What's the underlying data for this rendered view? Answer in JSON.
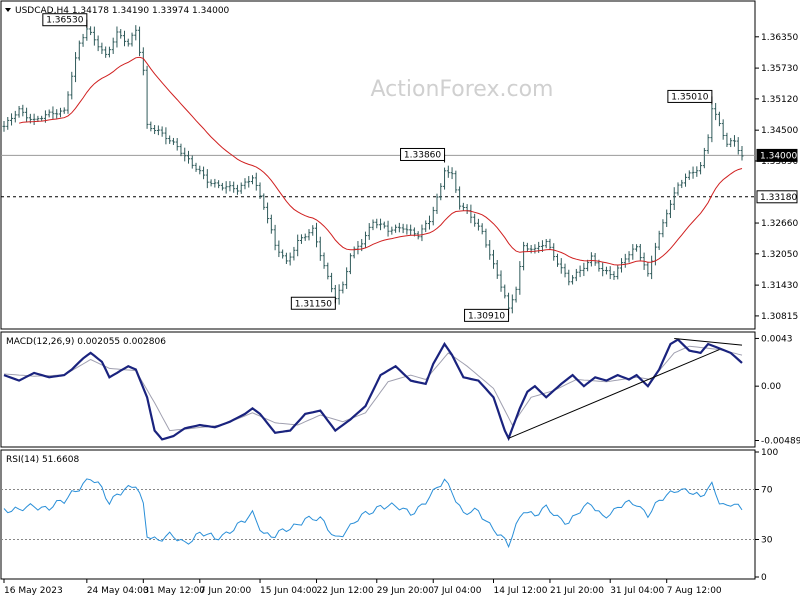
{
  "watermark": "ActionForex.com",
  "chart_data": [
    {
      "type": "bar",
      "name": "price",
      "title": "USDCAD,H4  1.34178 1.34190 1.33974 1.34000",
      "ylim": [
        1.3062,
        1.37
      ],
      "yticks": [
        {
          "v": 1.3635,
          "label": "1.36350"
        },
        {
          "v": 1.3573,
          "label": "1.35730"
        },
        {
          "v": 1.3512,
          "label": "1.35120"
        },
        {
          "v": 1.345,
          "label": "1.34500"
        },
        {
          "v": 1.3389,
          "label": "1.33890"
        },
        {
          "v": 1.3266,
          "label": "1.32660"
        },
        {
          "v": 1.3205,
          "label": "1.32050"
        },
        {
          "v": 1.3143,
          "label": "1.31430"
        },
        {
          "v": 1.3082,
          "label": "1.30815"
        }
      ],
      "current_price": {
        "v": 1.34,
        "label": "1.34000"
      },
      "support_line": {
        "v": 1.3318,
        "label": "1.33180"
      },
      "annotations": [
        {
          "label": "1.36530",
          "i": 22,
          "v": 1.3653
        },
        {
          "label": "1.33860",
          "i": 117,
          "v": 1.3386
        },
        {
          "label": "1.31150",
          "i": 88,
          "v": 1.3115
        },
        {
          "label": "1.30910",
          "i": 134,
          "v": 1.3091
        },
        {
          "label": "1.35010",
          "i": 188,
          "v": 1.3501
        }
      ],
      "anchors": [
        [
          0,
          1.3455
        ],
        [
          4,
          1.349
        ],
        [
          8,
          1.347
        ],
        [
          12,
          1.348
        ],
        [
          16,
          1.349
        ],
        [
          18,
          1.356
        ],
        [
          20,
          1.362
        ],
        [
          22,
          1.3648
        ],
        [
          24,
          1.363
        ],
        [
          27,
          1.36
        ],
        [
          30,
          1.364
        ],
        [
          33,
          1.362
        ],
        [
          35,
          1.365
        ],
        [
          37,
          1.357
        ],
        [
          38,
          1.346
        ],
        [
          42,
          1.344
        ],
        [
          46,
          1.342
        ],
        [
          50,
          1.338
        ],
        [
          54,
          1.335
        ],
        [
          58,
          1.334
        ],
        [
          62,
          1.333
        ],
        [
          66,
          1.336
        ],
        [
          69,
          1.33
        ],
        [
          72,
          1.322
        ],
        [
          75,
          1.319
        ],
        [
          78,
          1.323
        ],
        [
          82,
          1.325
        ],
        [
          86,
          1.316
        ],
        [
          88,
          1.312
        ],
        [
          90,
          1.314
        ],
        [
          92,
          1.32
        ],
        [
          95,
          1.323
        ],
        [
          98,
          1.327
        ],
        [
          102,
          1.325
        ],
        [
          106,
          1.326
        ],
        [
          110,
          1.324
        ],
        [
          113,
          1.327
        ],
        [
          116,
          1.334
        ],
        [
          117,
          1.3375
        ],
        [
          119,
          1.336
        ],
        [
          121,
          1.33
        ],
        [
          124,
          1.328
        ],
        [
          127,
          1.325
        ],
        [
          130,
          1.318
        ],
        [
          133,
          1.312
        ],
        [
          134,
          1.3095
        ],
        [
          136,
          1.314
        ],
        [
          138,
          1.322
        ],
        [
          141,
          1.321
        ],
        [
          144,
          1.323
        ],
        [
          147,
          1.319
        ],
        [
          150,
          1.315
        ],
        [
          153,
          1.317
        ],
        [
          156,
          1.32
        ],
        [
          159,
          1.317
        ],
        [
          162,
          1.316
        ],
        [
          165,
          1.32
        ],
        [
          168,
          1.322
        ],
        [
          171,
          1.316
        ],
        [
          173,
          1.322
        ],
        [
          176,
          1.329
        ],
        [
          179,
          1.334
        ],
        [
          182,
          1.336
        ],
        [
          185,
          1.338
        ],
        [
          187,
          1.344
        ],
        [
          188,
          1.3495
        ],
        [
          190,
          1.346
        ],
        [
          192,
          1.342
        ],
        [
          194,
          1.343
        ],
        [
          196,
          1.34
        ]
      ]
    },
    {
      "type": "line",
      "name": "macd",
      "title": "MACD(12,26,9) 0.002055 0.002806",
      "ylim": [
        -0.0053,
        0.0047
      ],
      "yticks": [
        {
          "v": 0.0043,
          "label": "0.0043"
        },
        {
          "v": 0.0,
          "label": "0.00"
        },
        {
          "v": -0.004895,
          "label": "-0.004895"
        }
      ],
      "main_anchors": [
        [
          0,
          0.001
        ],
        [
          4,
          0.0005
        ],
        [
          8,
          0.0012
        ],
        [
          12,
          0.0008
        ],
        [
          16,
          0.001
        ],
        [
          18,
          0.0015
        ],
        [
          21,
          0.0025
        ],
        [
          23,
          0.003
        ],
        [
          26,
          0.0022
        ],
        [
          28,
          0.0008
        ],
        [
          30,
          0.0012
        ],
        [
          33,
          0.0018
        ],
        [
          35,
          0.0015
        ],
        [
          38,
          -0.001
        ],
        [
          40,
          -0.004
        ],
        [
          42,
          -0.0048
        ],
        [
          45,
          -0.0045
        ],
        [
          48,
          -0.0038
        ],
        [
          52,
          -0.0035
        ],
        [
          56,
          -0.0037
        ],
        [
          60,
          -0.0032
        ],
        [
          64,
          -0.0025
        ],
        [
          66,
          -0.002
        ],
        [
          68,
          -0.0025
        ],
        [
          72,
          -0.0042
        ],
        [
          76,
          -0.004
        ],
        [
          80,
          -0.0025
        ],
        [
          84,
          -0.0022
        ],
        [
          88,
          -0.004
        ],
        [
          92,
          -0.003
        ],
        [
          96,
          -0.0018
        ],
        [
          100,
          0.001
        ],
        [
          104,
          0.0018
        ],
        [
          108,
          0.0005
        ],
        [
          112,
          0.0002
        ],
        [
          114,
          0.002
        ],
        [
          117,
          0.0038
        ],
        [
          119,
          0.0028
        ],
        [
          122,
          0.0008
        ],
        [
          126,
          0.0005
        ],
        [
          130,
          -0.001
        ],
        [
          133,
          -0.004
        ],
        [
          134,
          -0.0047
        ],
        [
          137,
          -0.002
        ],
        [
          139,
          -0.0005
        ],
        [
          141,
          0.0
        ],
        [
          144,
          -0.001
        ],
        [
          148,
          0.0002
        ],
        [
          151,
          0.001
        ],
        [
          154,
          0.0
        ],
        [
          157,
          0.0008
        ],
        [
          160,
          0.0005
        ],
        [
          163,
          0.001
        ],
        [
          166,
          0.0006
        ],
        [
          168,
          0.001
        ],
        [
          171,
          0.0
        ],
        [
          174,
          0.0015
        ],
        [
          177,
          0.0038
        ],
        [
          179,
          0.0042
        ],
        [
          182,
          0.0032
        ],
        [
          185,
          0.003
        ],
        [
          187,
          0.0038
        ],
        [
          190,
          0.0034
        ],
        [
          193,
          0.003
        ],
        [
          196,
          0.0021
        ]
      ],
      "signal_anchors": [
        [
          0,
          0.0011
        ],
        [
          8,
          0.0009
        ],
        [
          16,
          0.001
        ],
        [
          23,
          0.0024
        ],
        [
          28,
          0.0016
        ],
        [
          35,
          0.0014
        ],
        [
          40,
          -0.0015
        ],
        [
          44,
          -0.004
        ],
        [
          50,
          -0.0038
        ],
        [
          58,
          -0.0035
        ],
        [
          66,
          -0.0024
        ],
        [
          72,
          -0.0033
        ],
        [
          78,
          -0.0035
        ],
        [
          84,
          -0.0026
        ],
        [
          90,
          -0.0032
        ],
        [
          96,
          -0.0024
        ],
        [
          102,
          0.0004
        ],
        [
          108,
          0.001
        ],
        [
          112,
          0.0006
        ],
        [
          118,
          0.003
        ],
        [
          123,
          0.0018
        ],
        [
          130,
          -0.0002
        ],
        [
          135,
          -0.0035
        ],
        [
          140,
          -0.001
        ],
        [
          146,
          -0.0004
        ],
        [
          152,
          0.0006
        ],
        [
          160,
          0.0004
        ],
        [
          168,
          0.0008
        ],
        [
          172,
          0.0006
        ],
        [
          178,
          0.003
        ],
        [
          182,
          0.0036
        ],
        [
          190,
          0.0033
        ],
        [
          196,
          0.0028
        ]
      ],
      "trendlines": [
        {
          "from": [
            134,
            -0.0047
          ],
          "to": [
            190,
            0.0033
          ]
        },
        {
          "from": [
            178,
            0.0043
          ],
          "to": [
            196,
            0.0037
          ]
        }
      ]
    },
    {
      "type": "line",
      "name": "rsi",
      "title": "RSI(14) 51.6608",
      "ylim": [
        0,
        100
      ],
      "yticks": [
        {
          "v": 100,
          "label": "100"
        },
        {
          "v": 70,
          "label": "70"
        },
        {
          "v": 30,
          "label": "30"
        },
        {
          "v": 0,
          "label": "0"
        }
      ],
      "levels": [
        70,
        30
      ],
      "anchors": [
        [
          0,
          55
        ],
        [
          4,
          52
        ],
        [
          8,
          58
        ],
        [
          12,
          55
        ],
        [
          16,
          60
        ],
        [
          18,
          68
        ],
        [
          21,
          75
        ],
        [
          23,
          78
        ],
        [
          26,
          70
        ],
        [
          28,
          60
        ],
        [
          30,
          68
        ],
        [
          33,
          70
        ],
        [
          35,
          72
        ],
        [
          37,
          58
        ],
        [
          38,
          35
        ],
        [
          41,
          30
        ],
        [
          44,
          32
        ],
        [
          48,
          28
        ],
        [
          52,
          35
        ],
        [
          56,
          30
        ],
        [
          60,
          38
        ],
        [
          64,
          44
        ],
        [
          66,
          50
        ],
        [
          69,
          36
        ],
        [
          72,
          33
        ],
        [
          76,
          38
        ],
        [
          80,
          48
        ],
        [
          84,
          45
        ],
        [
          88,
          32
        ],
        [
          92,
          40
        ],
        [
          96,
          50
        ],
        [
          100,
          58
        ],
        [
          104,
          55
        ],
        [
          108,
          52
        ],
        [
          112,
          60
        ],
        [
          114,
          66
        ],
        [
          117,
          78
        ],
        [
          119,
          70
        ],
        [
          122,
          50
        ],
        [
          126,
          52
        ],
        [
          130,
          40
        ],
        [
          133,
          28
        ],
        [
          134,
          24
        ],
        [
          136,
          40
        ],
        [
          138,
          55
        ],
        [
          141,
          50
        ],
        [
          144,
          54
        ],
        [
          147,
          48
        ],
        [
          150,
          45
        ],
        [
          153,
          52
        ],
        [
          156,
          58
        ],
        [
          159,
          50
        ],
        [
          162,
          52
        ],
        [
          165,
          58
        ],
        [
          168,
          60
        ],
        [
          171,
          50
        ],
        [
          173,
          56
        ],
        [
          176,
          65
        ],
        [
          179,
          72
        ],
        [
          182,
          68
        ],
        [
          185,
          62
        ],
        [
          187,
          72
        ],
        [
          188,
          75
        ],
        [
          190,
          62
        ],
        [
          192,
          55
        ],
        [
          194,
          58
        ],
        [
          196,
          52
        ]
      ]
    }
  ],
  "x_axis": {
    "count": 197,
    "labels": [
      {
        "i": 0,
        "label": "16 May 2023"
      },
      {
        "i": 22,
        "label": "24 May 04:00"
      },
      {
        "i": 37,
        "label": "31 May 12:00"
      },
      {
        "i": 52,
        "label": "7 Jun 20:00"
      },
      {
        "i": 68,
        "label": "15 Jun 04:00"
      },
      {
        "i": 83,
        "label": "22 Jun 12:00"
      },
      {
        "i": 99,
        "label": "29 Jun 20:00"
      },
      {
        "i": 114,
        "label": "7 Jul 04:00"
      },
      {
        "i": 130,
        "label": "14 Jul 12:00"
      },
      {
        "i": 145,
        "label": "21 Jul 20:00"
      },
      {
        "i": 161,
        "label": "31 Jul 04:00"
      },
      {
        "i": 176,
        "label": "7 Aug 12:00"
      }
    ]
  }
}
